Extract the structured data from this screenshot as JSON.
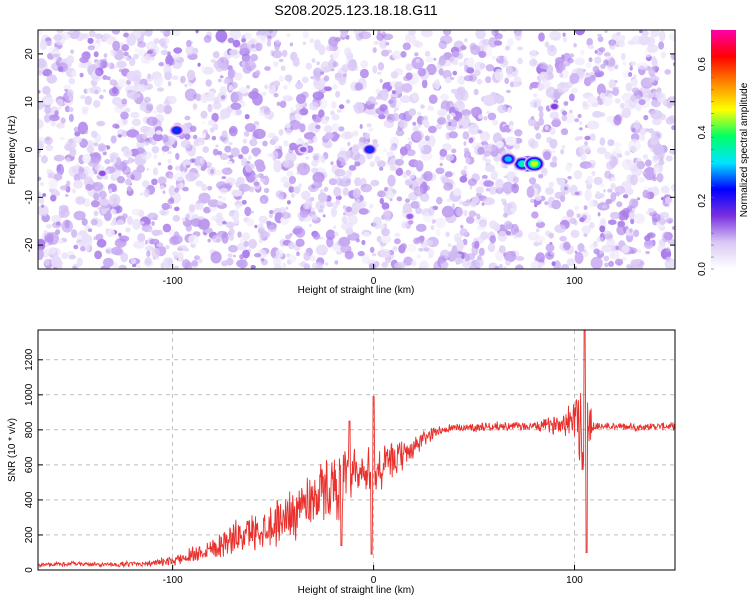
{
  "title": "S208.2025.123.18.18.G11",
  "chart_data": [
    {
      "type": "heatmap",
      "xlabel": "Height of straight line (km)",
      "ylabel": "Frequency (Hz)",
      "xlim": [
        -167,
        150
      ],
      "ylim": [
        -25,
        25
      ],
      "xticks": [
        -100,
        0,
        100
      ],
      "yticks": [
        -20,
        -10,
        0,
        10,
        20
      ],
      "colorbar": {
        "label": "Normalized spectral amplitude",
        "range": [
          0.0,
          0.7
        ],
        "ticks": [
          "0.0",
          "0.2",
          "0.4",
          "0.6"
        ],
        "colors": [
          "#ffffff",
          "#d9c8f5",
          "#7a30e0",
          "#0000ff",
          "#00e5ff",
          "#00ff66",
          "#ffff00",
          "#ff8800",
          "#ff0000",
          "#ff00aa"
        ]
      },
      "background_speckle_amplitude": 0.12,
      "blank_band_x": [
        73,
        78
      ],
      "hotspots": [
        {
          "x": 77,
          "y": -3,
          "value": 0.65
        },
        {
          "x": 74,
          "y": -3,
          "value": 0.35
        },
        {
          "x": 80,
          "y": -3,
          "value": 0.45
        },
        {
          "x": 67,
          "y": -2,
          "value": 0.3
        },
        {
          "x": -98,
          "y": 4,
          "value": 0.25
        },
        {
          "x": -2,
          "y": 0,
          "value": 0.25
        },
        {
          "x": 90,
          "y": 9,
          "value": 0.15
        },
        {
          "x": -135,
          "y": -5,
          "value": 0.14
        },
        {
          "x": 18,
          "y": -14,
          "value": 0.13
        },
        {
          "x": -35,
          "y": 0,
          "value": 0.13
        }
      ]
    },
    {
      "type": "line",
      "xlabel": "Height of straight line (km)",
      "ylabel": "SNR (10 * v/v)",
      "xlim": [
        -167,
        150
      ],
      "ylim": [
        0,
        1370
      ],
      "xticks": [
        -100,
        0,
        100
      ],
      "yticks": [
        0,
        200,
        400,
        600,
        800,
        1000,
        1200
      ],
      "series": [
        {
          "color": "#e8302c",
          "x": [
            -167,
            -150,
            -130,
            -110,
            -100,
            -90,
            -80,
            -70,
            -60,
            -50,
            -40,
            -30,
            -20,
            -10,
            0,
            10,
            20,
            30,
            40,
            50,
            60,
            70,
            80,
            90,
            95,
            100,
            103,
            105,
            107,
            110,
            120,
            130,
            140,
            150
          ],
          "y": [
            30,
            35,
            30,
            40,
            50,
            90,
            130,
            180,
            220,
            260,
            330,
            420,
            480,
            520,
            560,
            620,
            700,
            790,
            810,
            815,
            820,
            820,
            820,
            830,
            850,
            880,
            900,
            600,
            850,
            820,
            820,
            815,
            820,
            820
          ],
          "noise": [
            15,
            15,
            15,
            20,
            30,
            60,
            80,
            110,
            120,
            150,
            180,
            200,
            220,
            220,
            200,
            120,
            80,
            40,
            30,
            30,
            30,
            30,
            30,
            60,
            90,
            150,
            350,
            500,
            250,
            30,
            25,
            25,
            25,
            25
          ]
        }
      ]
    }
  ]
}
